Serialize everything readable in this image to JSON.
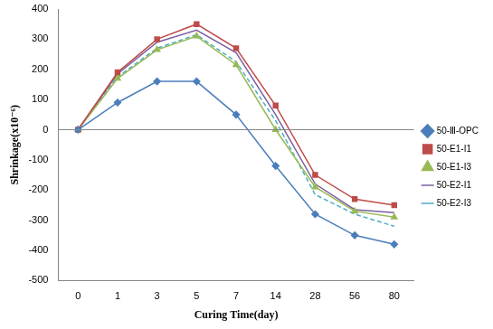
{
  "chart_data": {
    "type": "line",
    "x_label": "Curing Time(day)",
    "y_label": "Shrinkage(x10⁻⁶)",
    "categories": [
      "0",
      "1",
      "3",
      "5",
      "7",
      "14",
      "28",
      "56",
      "80"
    ],
    "series": [
      {
        "name": "50-Ⅲ-OPC",
        "color": "#4a7ebb",
        "marker": "diamond",
        "line_style": "solid",
        "values": [
          0,
          90,
          160,
          160,
          50,
          -120,
          -280,
          -350,
          -380
        ]
      },
      {
        "name": "50-E1-I1",
        "color": "#be4b48",
        "marker": "square",
        "line_style": "solid",
        "values": [
          0,
          190,
          300,
          350,
          270,
          80,
          -150,
          -230,
          -250
        ]
      },
      {
        "name": "50-E1-I3",
        "color": "#98b954",
        "marker": "triangle",
        "line_style": "solid",
        "values": [
          0,
          170,
          265,
          310,
          215,
          0,
          -190,
          -270,
          -290
        ]
      },
      {
        "name": "50-E2-I1",
        "color": "#7d60a0",
        "marker": "none",
        "line_style": "solid",
        "values": [
          0,
          185,
          290,
          330,
          255,
          50,
          -180,
          -265,
          -275
        ]
      },
      {
        "name": "50-E2-I3",
        "color": "#4bacc6",
        "marker": "none",
        "line_style": "dashed",
        "values": [
          0,
          175,
          270,
          315,
          225,
          30,
          -215,
          -280,
          -320
        ]
      }
    ],
    "ylim": [
      -500,
      400
    ],
    "yticks": [
      -500,
      -400,
      -300,
      -200,
      -100,
      0,
      100,
      200,
      300,
      400
    ],
    "grid": false,
    "legend": "right"
  }
}
